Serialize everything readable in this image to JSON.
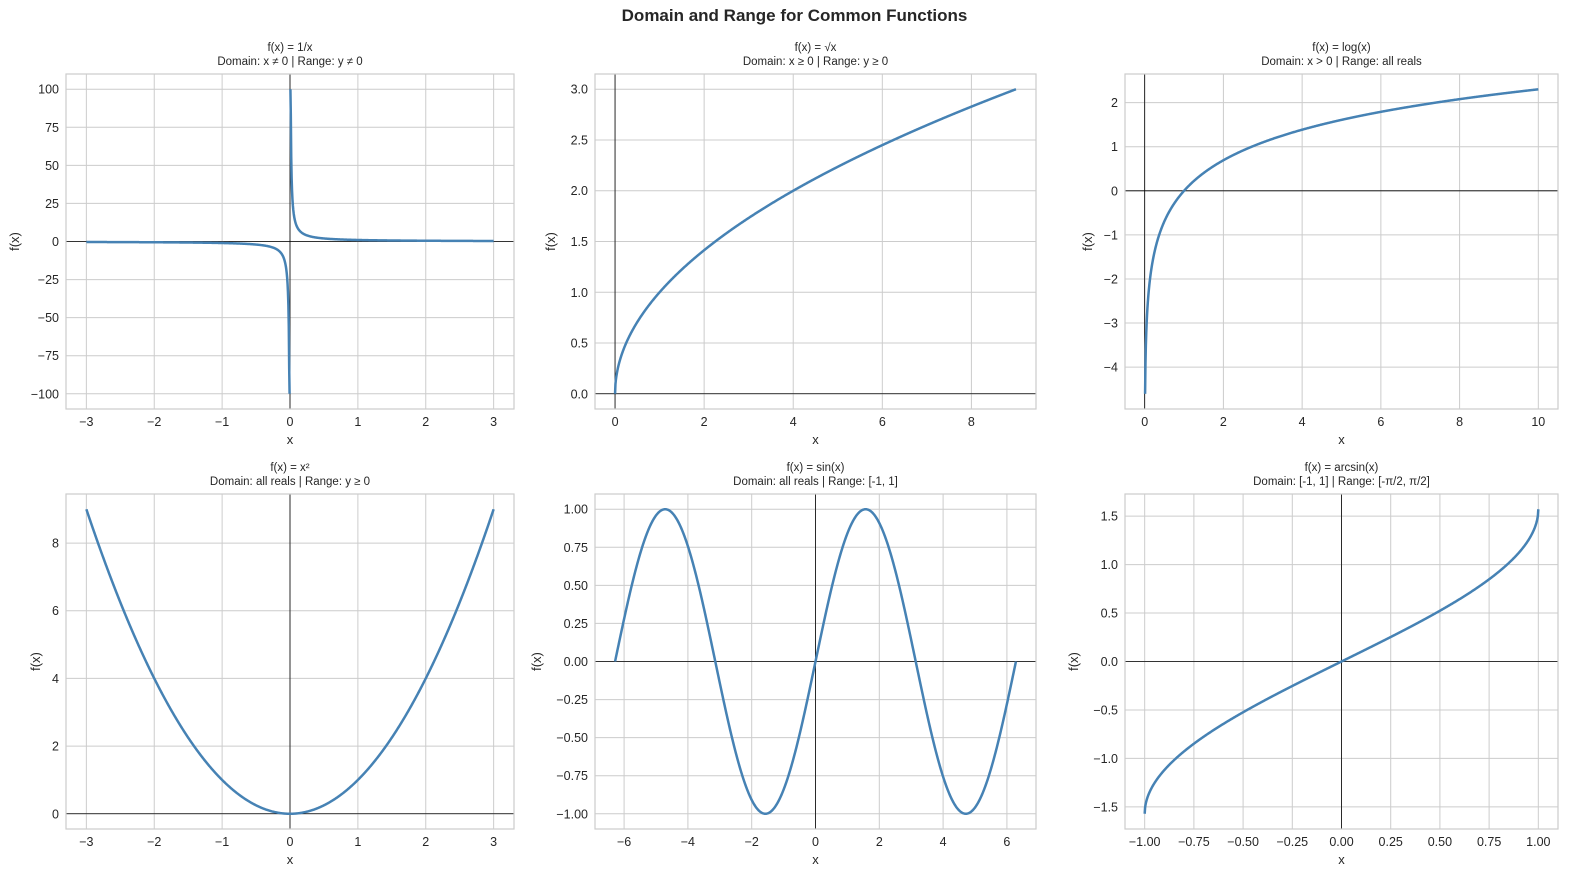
{
  "figure": {
    "title": "Domain and Range for Common Functions",
    "line_color": "#4682b4",
    "grid_color": "#cccccc",
    "axis_line_color": "#000000"
  },
  "chart_data": [
    {
      "type": "line",
      "title": "f(x) = 1/x",
      "subtitle": "Domain: x ≠ 0  |  Range: y ≠ 0",
      "xlabel": "x",
      "ylabel": "f(x)",
      "xlim": [
        -3.3,
        3.3
      ],
      "ylim": [
        -110,
        110
      ],
      "xticks": [
        -3,
        -2,
        -1,
        0,
        1,
        2,
        3
      ],
      "xtick_labels": [
        "−3",
        "−2",
        "−1",
        "0",
        "1",
        "2",
        "3"
      ],
      "yticks": [
        100,
        75,
        50,
        25,
        0,
        -25,
        -50,
        -75,
        -100
      ],
      "ytick_labels": [
        "100",
        "75",
        "50",
        "25",
        "0",
        "−25",
        "−50",
        "−75",
        "−100"
      ],
      "function": "1/x",
      "x_range": [
        -3,
        3
      ],
      "y_clip": [
        -100,
        100
      ],
      "grid": true
    },
    {
      "type": "line",
      "title": "f(x) = √x",
      "subtitle": "Domain: x ≥ 0  |  Range: y ≥ 0",
      "xlabel": "x",
      "ylabel": "f(x)",
      "xlim": [
        -0.45,
        9.45
      ],
      "ylim": [
        -0.15,
        3.15
      ],
      "xticks": [
        0,
        2,
        4,
        6,
        8
      ],
      "xtick_labels": [
        "0",
        "2",
        "4",
        "6",
        "8"
      ],
      "yticks": [
        3.0,
        2.5,
        2.0,
        1.5,
        1.0,
        0.5,
        0.0
      ],
      "ytick_labels": [
        "3.0",
        "2.5",
        "2.0",
        "1.5",
        "1.0",
        "0.5",
        "0.0"
      ],
      "function": "sqrt(x)",
      "x_range": [
        0,
        9
      ],
      "grid": true
    },
    {
      "type": "line",
      "title": "f(x) = log(x)",
      "subtitle": "Domain: x > 0  |  Range: all reals",
      "xlabel": "x",
      "ylabel": "f(x)",
      "xlim": [
        -0.5,
        10.5
      ],
      "ylim": [
        -4.95,
        2.65
      ],
      "xticks": [
        0,
        2,
        4,
        6,
        8,
        10
      ],
      "xtick_labels": [
        "0",
        "2",
        "4",
        "6",
        "8",
        "10"
      ],
      "yticks": [
        2,
        1,
        0,
        -1,
        -2,
        -3,
        -4
      ],
      "ytick_labels": [
        "2",
        "1",
        "0",
        "−1",
        "−2",
        "−3",
        "−4"
      ],
      "function": "ln(x)",
      "x_range": [
        0.01,
        10
      ],
      "grid": true
    },
    {
      "type": "line",
      "title": "f(x) = x²",
      "subtitle": "Domain: all reals  |  Range: y ≥ 0",
      "xlabel": "x",
      "ylabel": "f(x)",
      "xlim": [
        -3.3,
        3.3
      ],
      "ylim": [
        -0.45,
        9.45
      ],
      "xticks": [
        -3,
        -2,
        -1,
        0,
        1,
        2,
        3
      ],
      "xtick_labels": [
        "−3",
        "−2",
        "−1",
        "0",
        "1",
        "2",
        "3"
      ],
      "yticks": [
        8,
        6,
        4,
        2,
        0
      ],
      "ytick_labels": [
        "8",
        "6",
        "4",
        "2",
        "0"
      ],
      "function": "x^2",
      "x_range": [
        -3,
        3
      ],
      "grid": true
    },
    {
      "type": "line",
      "title": "f(x) = sin(x)",
      "subtitle": "Domain: all reals  |  Range: [-1, 1]",
      "xlabel": "x",
      "ylabel": "f(x)",
      "xlim": [
        -6.912,
        6.912
      ],
      "ylim": [
        -1.1,
        1.1
      ],
      "xticks": [
        -6,
        -4,
        -2,
        0,
        2,
        4,
        6
      ],
      "xtick_labels": [
        "−6",
        "−4",
        "−2",
        "0",
        "2",
        "4",
        "6"
      ],
      "yticks": [
        1.0,
        0.75,
        0.5,
        0.25,
        0.0,
        -0.25,
        -0.5,
        -0.75,
        -1.0
      ],
      "ytick_labels": [
        "1.00",
        "0.75",
        "0.50",
        "0.25",
        "0.00",
        "−0.25",
        "−0.50",
        "−0.75",
        "−1.00"
      ],
      "function": "sin(x)",
      "x_range": [
        -6.2832,
        6.2832
      ],
      "grid": true
    },
    {
      "type": "line",
      "title": "f(x) = arcsin(x)",
      "subtitle": "Domain: [-1, 1]  |  Range: [-π/2, π/2]",
      "xlabel": "x",
      "ylabel": "f(x)",
      "xlim": [
        -1.1,
        1.1
      ],
      "ylim": [
        -1.728,
        1.728
      ],
      "xticks": [
        -1.0,
        -0.75,
        -0.5,
        -0.25,
        0.0,
        0.25,
        0.5,
        0.75,
        1.0
      ],
      "xtick_labels": [
        "−1.00",
        "−0.75",
        "−0.50",
        "−0.25",
        "0.00",
        "0.25",
        "0.50",
        "0.75",
        "1.00"
      ],
      "yticks": [
        1.5,
        1.0,
        0.5,
        0.0,
        -0.5,
        -1.0,
        -1.5
      ],
      "ytick_labels": [
        "1.5",
        "1.0",
        "0.5",
        "0.0",
        "−0.5",
        "−1.0",
        "−1.5"
      ],
      "function": "arcsin(x)",
      "x_range": [
        -1,
        1
      ],
      "grid": true
    }
  ]
}
